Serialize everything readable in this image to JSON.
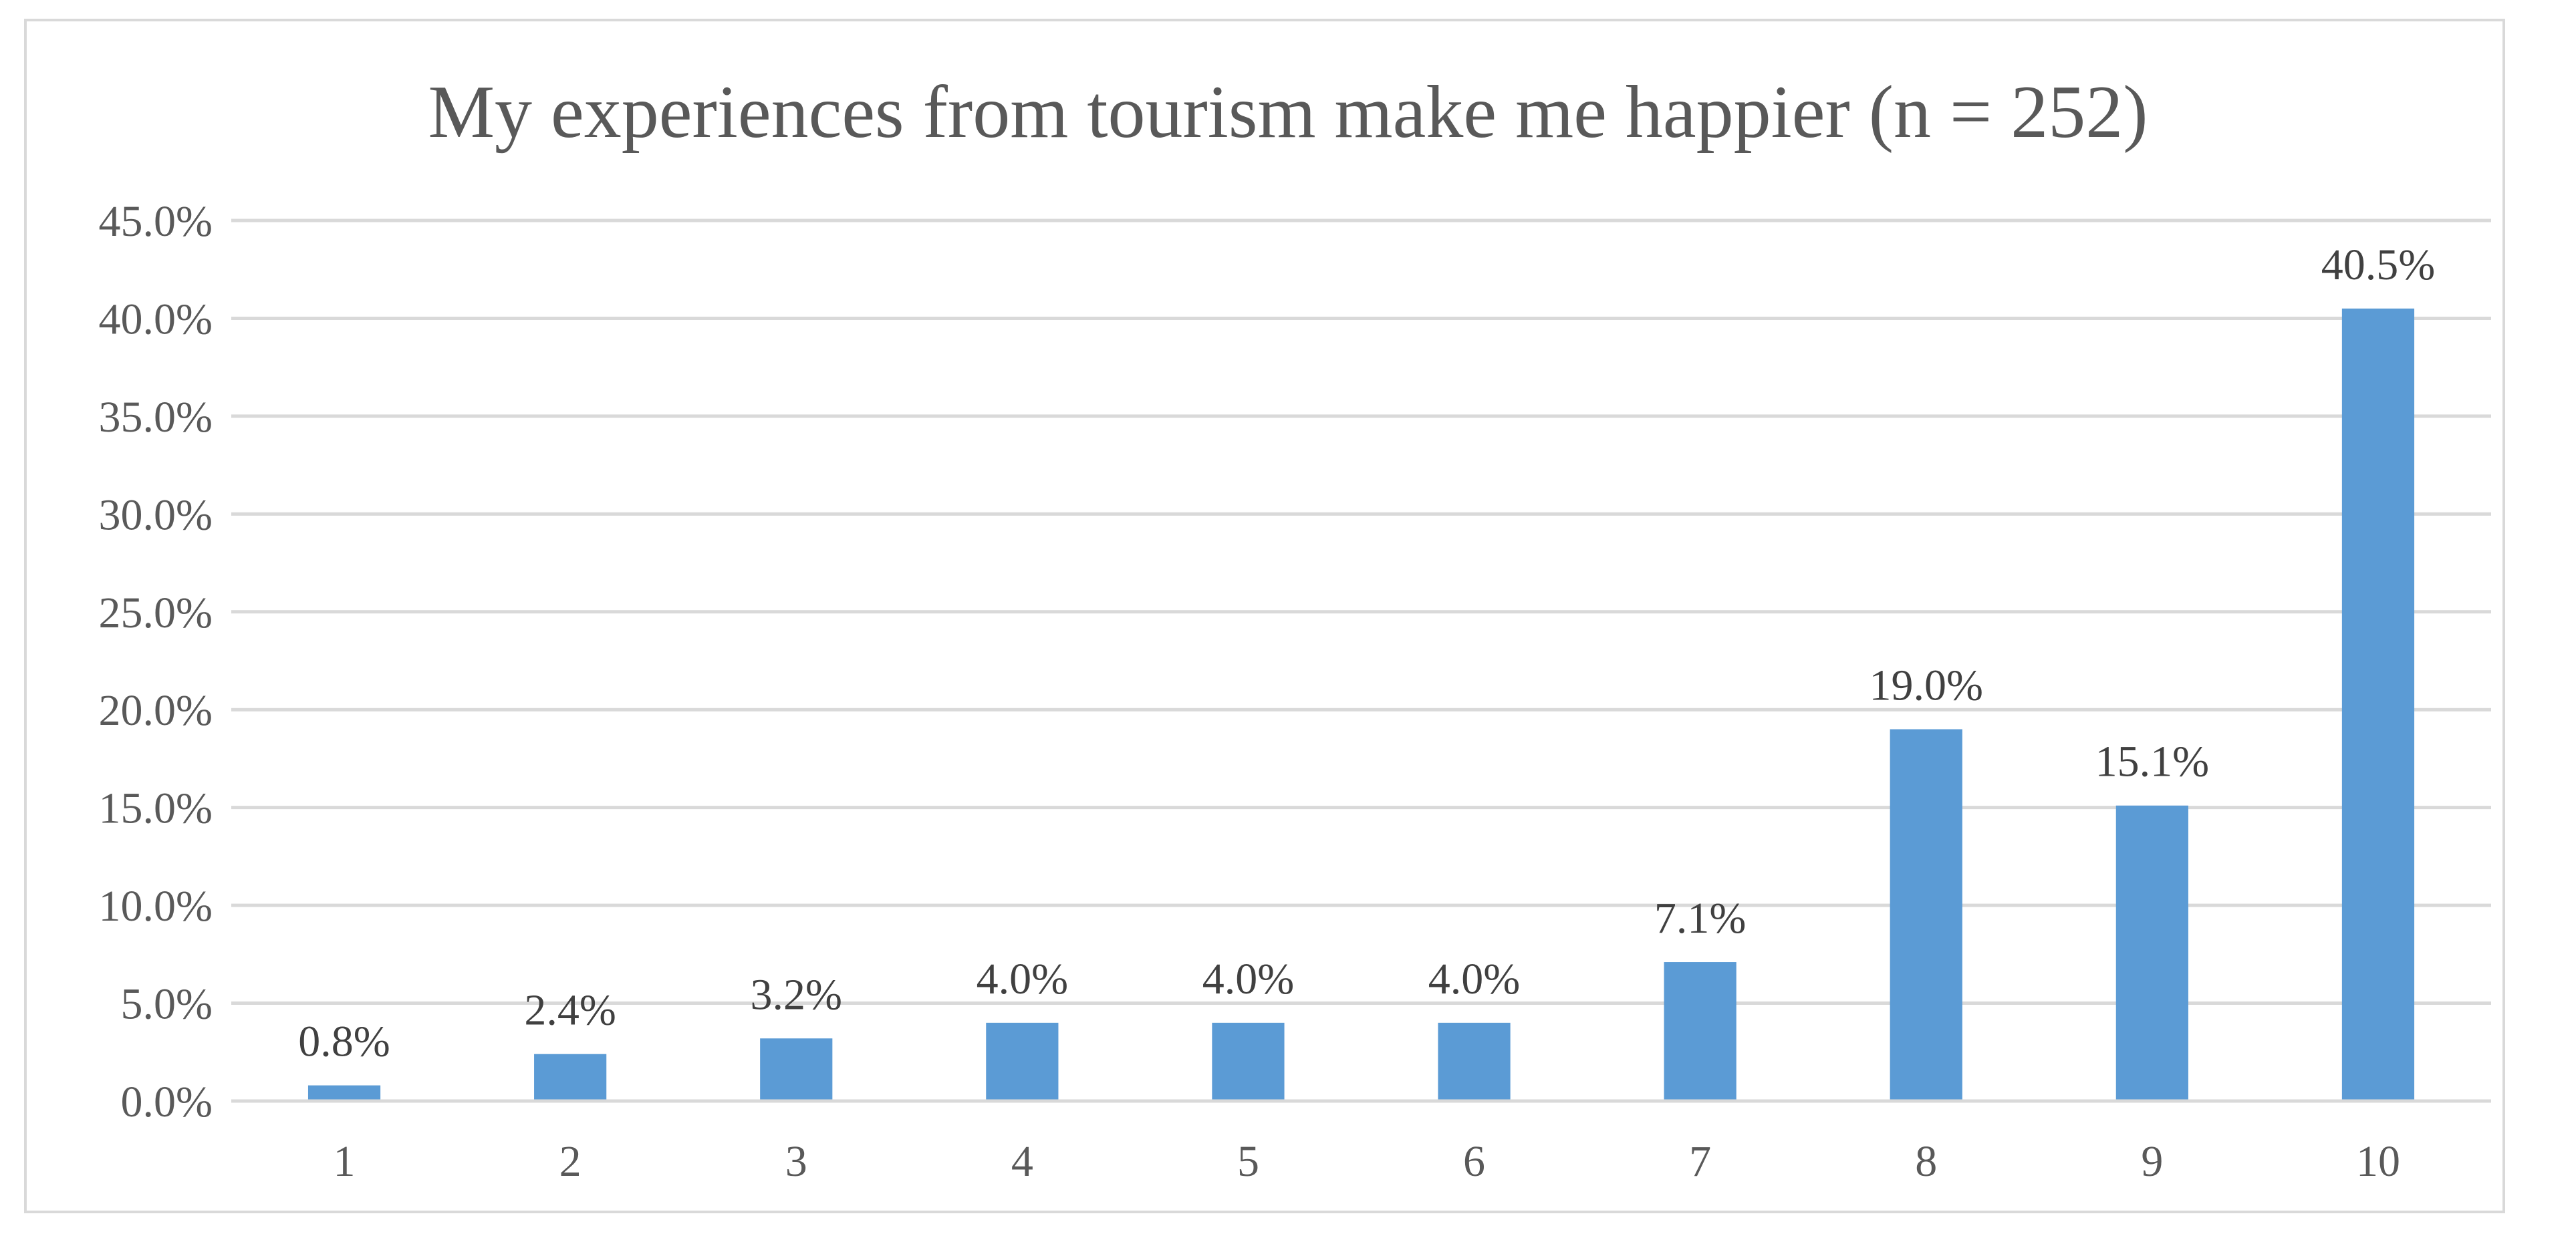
{
  "chart_data": {
    "type": "bar",
    "title": "My experiences from tourism make me happier (n = 252)",
    "xlabel": "",
    "ylabel": "",
    "categories": [
      "1",
      "2",
      "3",
      "4",
      "5",
      "6",
      "7",
      "8",
      "9",
      "10"
    ],
    "values": [
      0.8,
      2.4,
      3.2,
      4.0,
      4.0,
      4.0,
      7.1,
      19.0,
      15.1,
      40.5
    ],
    "data_labels": [
      "0.8%",
      "2.4%",
      "3.2%",
      "4.0%",
      "4.0%",
      "4.0%",
      "7.1%",
      "19.0%",
      "15.1%",
      "40.5%"
    ],
    "ylim": [
      0,
      45
    ],
    "yticks": [
      0,
      5,
      10,
      15,
      20,
      25,
      30,
      35,
      40,
      45
    ],
    "ytick_labels": [
      "0.0%",
      "5.0%",
      "10.0%",
      "15.0%",
      "20.0%",
      "25.0%",
      "30.0%",
      "35.0%",
      "40.0%",
      "45.0%"
    ],
    "grid": true,
    "legend": "none",
    "bar_color": "#5b9bd5"
  }
}
